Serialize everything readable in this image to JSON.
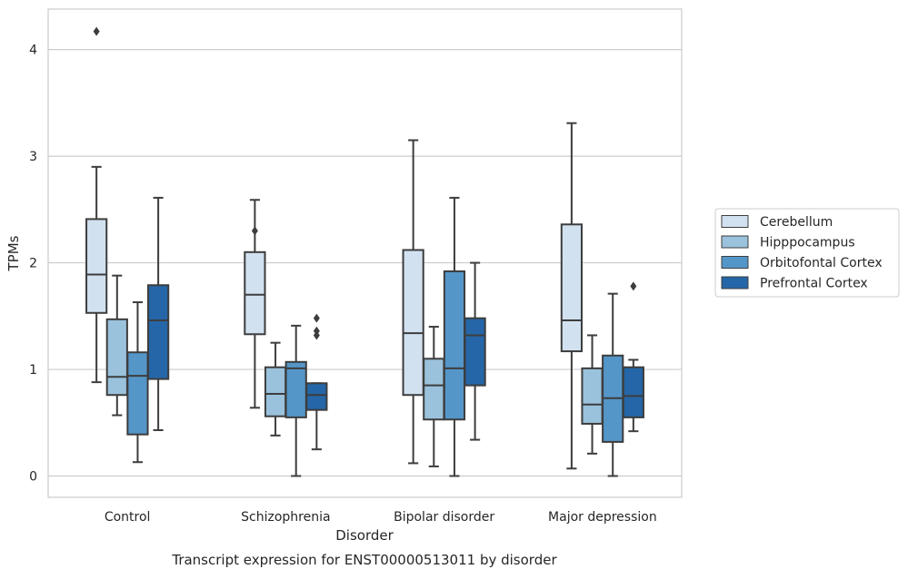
{
  "chart_data": {
    "type": "box",
    "title": "",
    "caption": "Transcript expression for ENST00000513011 by disorder",
    "xlabel": "Disorder",
    "ylabel": "TPMs",
    "categories": [
      "Control",
      "Schizophrenia",
      "Bipolar disorder",
      "Major depression"
    ],
    "ylim": [
      -0.2,
      4.38
    ],
    "yticks": [
      0,
      1,
      2,
      3,
      4
    ],
    "grid": "horizontal",
    "legend_position": "right",
    "series": [
      {
        "name": "Cerebellum",
        "color": "#d1e1f0",
        "boxes": [
          {
            "whisker_low": 0.88,
            "q1": 1.53,
            "median": 1.89,
            "q3": 2.41,
            "whisker_high": 2.9,
            "outliers": [
              4.17
            ]
          },
          {
            "whisker_low": 0.64,
            "q1": 1.33,
            "median": 1.7,
            "q3": 2.1,
            "whisker_high": 2.59,
            "outliers": [
              2.3
            ]
          },
          {
            "whisker_low": 0.12,
            "q1": 0.76,
            "median": 1.34,
            "q3": 2.12,
            "whisker_high": 3.15,
            "outliers": []
          },
          {
            "whisker_low": 0.07,
            "q1": 1.17,
            "median": 1.46,
            "q3": 2.36,
            "whisker_high": 3.31,
            "outliers": []
          }
        ]
      },
      {
        "name": "Hipppocampus",
        "color": "#9ac2dc",
        "boxes": [
          {
            "whisker_low": 0.57,
            "q1": 0.76,
            "median": 0.93,
            "q3": 1.47,
            "whisker_high": 1.88,
            "outliers": []
          },
          {
            "whisker_low": 0.38,
            "q1": 0.56,
            "median": 0.77,
            "q3": 1.02,
            "whisker_high": 1.25,
            "outliers": []
          },
          {
            "whisker_low": 0.09,
            "q1": 0.53,
            "median": 0.85,
            "q3": 1.1,
            "whisker_high": 1.4,
            "outliers": []
          },
          {
            "whisker_low": 0.21,
            "q1": 0.49,
            "median": 0.67,
            "q3": 1.01,
            "whisker_high": 1.32,
            "outliers": []
          }
        ]
      },
      {
        "name": "Orbitofontal Cortex",
        "color": "#5596c8",
        "boxes": [
          {
            "whisker_low": 0.13,
            "q1": 0.39,
            "median": 0.94,
            "q3": 1.16,
            "whisker_high": 1.63,
            "outliers": []
          },
          {
            "whisker_low": 0.0,
            "q1": 0.55,
            "median": 1.01,
            "q3": 1.07,
            "whisker_high": 1.41,
            "outliers": []
          },
          {
            "whisker_low": 0.0,
            "q1": 0.53,
            "median": 1.01,
            "q3": 1.92,
            "whisker_high": 2.61,
            "outliers": []
          },
          {
            "whisker_low": 0.0,
            "q1": 0.32,
            "median": 0.73,
            "q3": 1.13,
            "whisker_high": 1.71,
            "outliers": []
          }
        ]
      },
      {
        "name": "Prefrontal Cortex",
        "color": "#2566a8",
        "boxes": [
          {
            "whisker_low": 0.43,
            "q1": 0.91,
            "median": 1.46,
            "q3": 1.79,
            "whisker_high": 2.61,
            "outliers": []
          },
          {
            "whisker_low": 0.25,
            "q1": 0.62,
            "median": 0.76,
            "q3": 0.87,
            "whisker_high": 0.87,
            "outliers": [
              1.32,
              1.36,
              1.48
            ]
          },
          {
            "whisker_low": 0.34,
            "q1": 0.85,
            "median": 1.32,
            "q3": 1.48,
            "whisker_high": 2.0,
            "outliers": []
          },
          {
            "whisker_low": 0.42,
            "q1": 0.55,
            "median": 0.75,
            "q3": 1.02,
            "whisker_high": 1.09,
            "outliers": [
              1.78
            ]
          }
        ]
      }
    ]
  },
  "colors": {
    "edge": "#3d3d3d",
    "grid": "#cccccc",
    "frame": "#cccccc"
  }
}
